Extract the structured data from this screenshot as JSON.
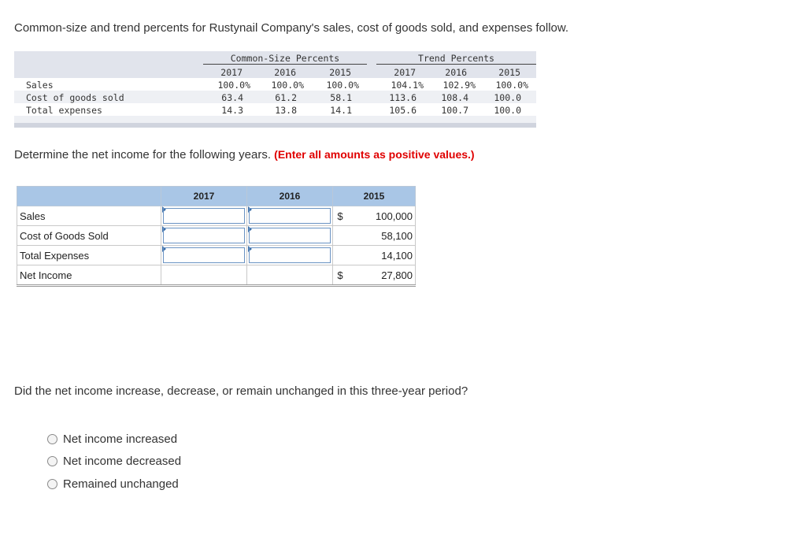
{
  "intro": "Common-size and trend percents for Rustynail Company's sales, cost of goods sold, and expenses follow.",
  "given": {
    "common_size_header": "Common-Size Percents",
    "trend_header": "Trend Percents",
    "years": [
      "2017",
      "2016",
      "2015"
    ],
    "rows": [
      {
        "label": "Sales",
        "common_size": [
          "100.0%",
          "100.0%",
          "100.0%"
        ],
        "trend": [
          "104.1%",
          "102.9%",
          "100.0%"
        ]
      },
      {
        "label": "Cost of goods sold",
        "common_size": [
          "63.4",
          "61.2",
          "58.1"
        ],
        "trend": [
          "113.6",
          "108.4",
          "100.0"
        ]
      },
      {
        "label": "Total expenses",
        "common_size": [
          "14.3",
          "13.8",
          "14.1"
        ],
        "trend": [
          "105.6",
          "100.7",
          "100.0"
        ]
      }
    ]
  },
  "instruction": "Determine the net income for the following years.",
  "instruction_note": "(Enter all amounts as positive values.)",
  "answer_table": {
    "headers": [
      "2017",
      "2016",
      "2015"
    ],
    "rows": [
      {
        "label": "Sales",
        "dollar": "$",
        "value_2015": "100,000"
      },
      {
        "label": "Cost of Goods Sold",
        "dollar": "",
        "value_2015": "58,100"
      },
      {
        "label": "Total Expenses",
        "dollar": "",
        "value_2015": "14,100"
      },
      {
        "label": "Net Income",
        "dollar": "$",
        "value_2015": "27,800"
      }
    ]
  },
  "question": "Did the net income increase, decrease, or remain unchanged in this three-year period?",
  "options": [
    "Net income increased",
    "Net income decreased",
    "Remained unchanged"
  ]
}
